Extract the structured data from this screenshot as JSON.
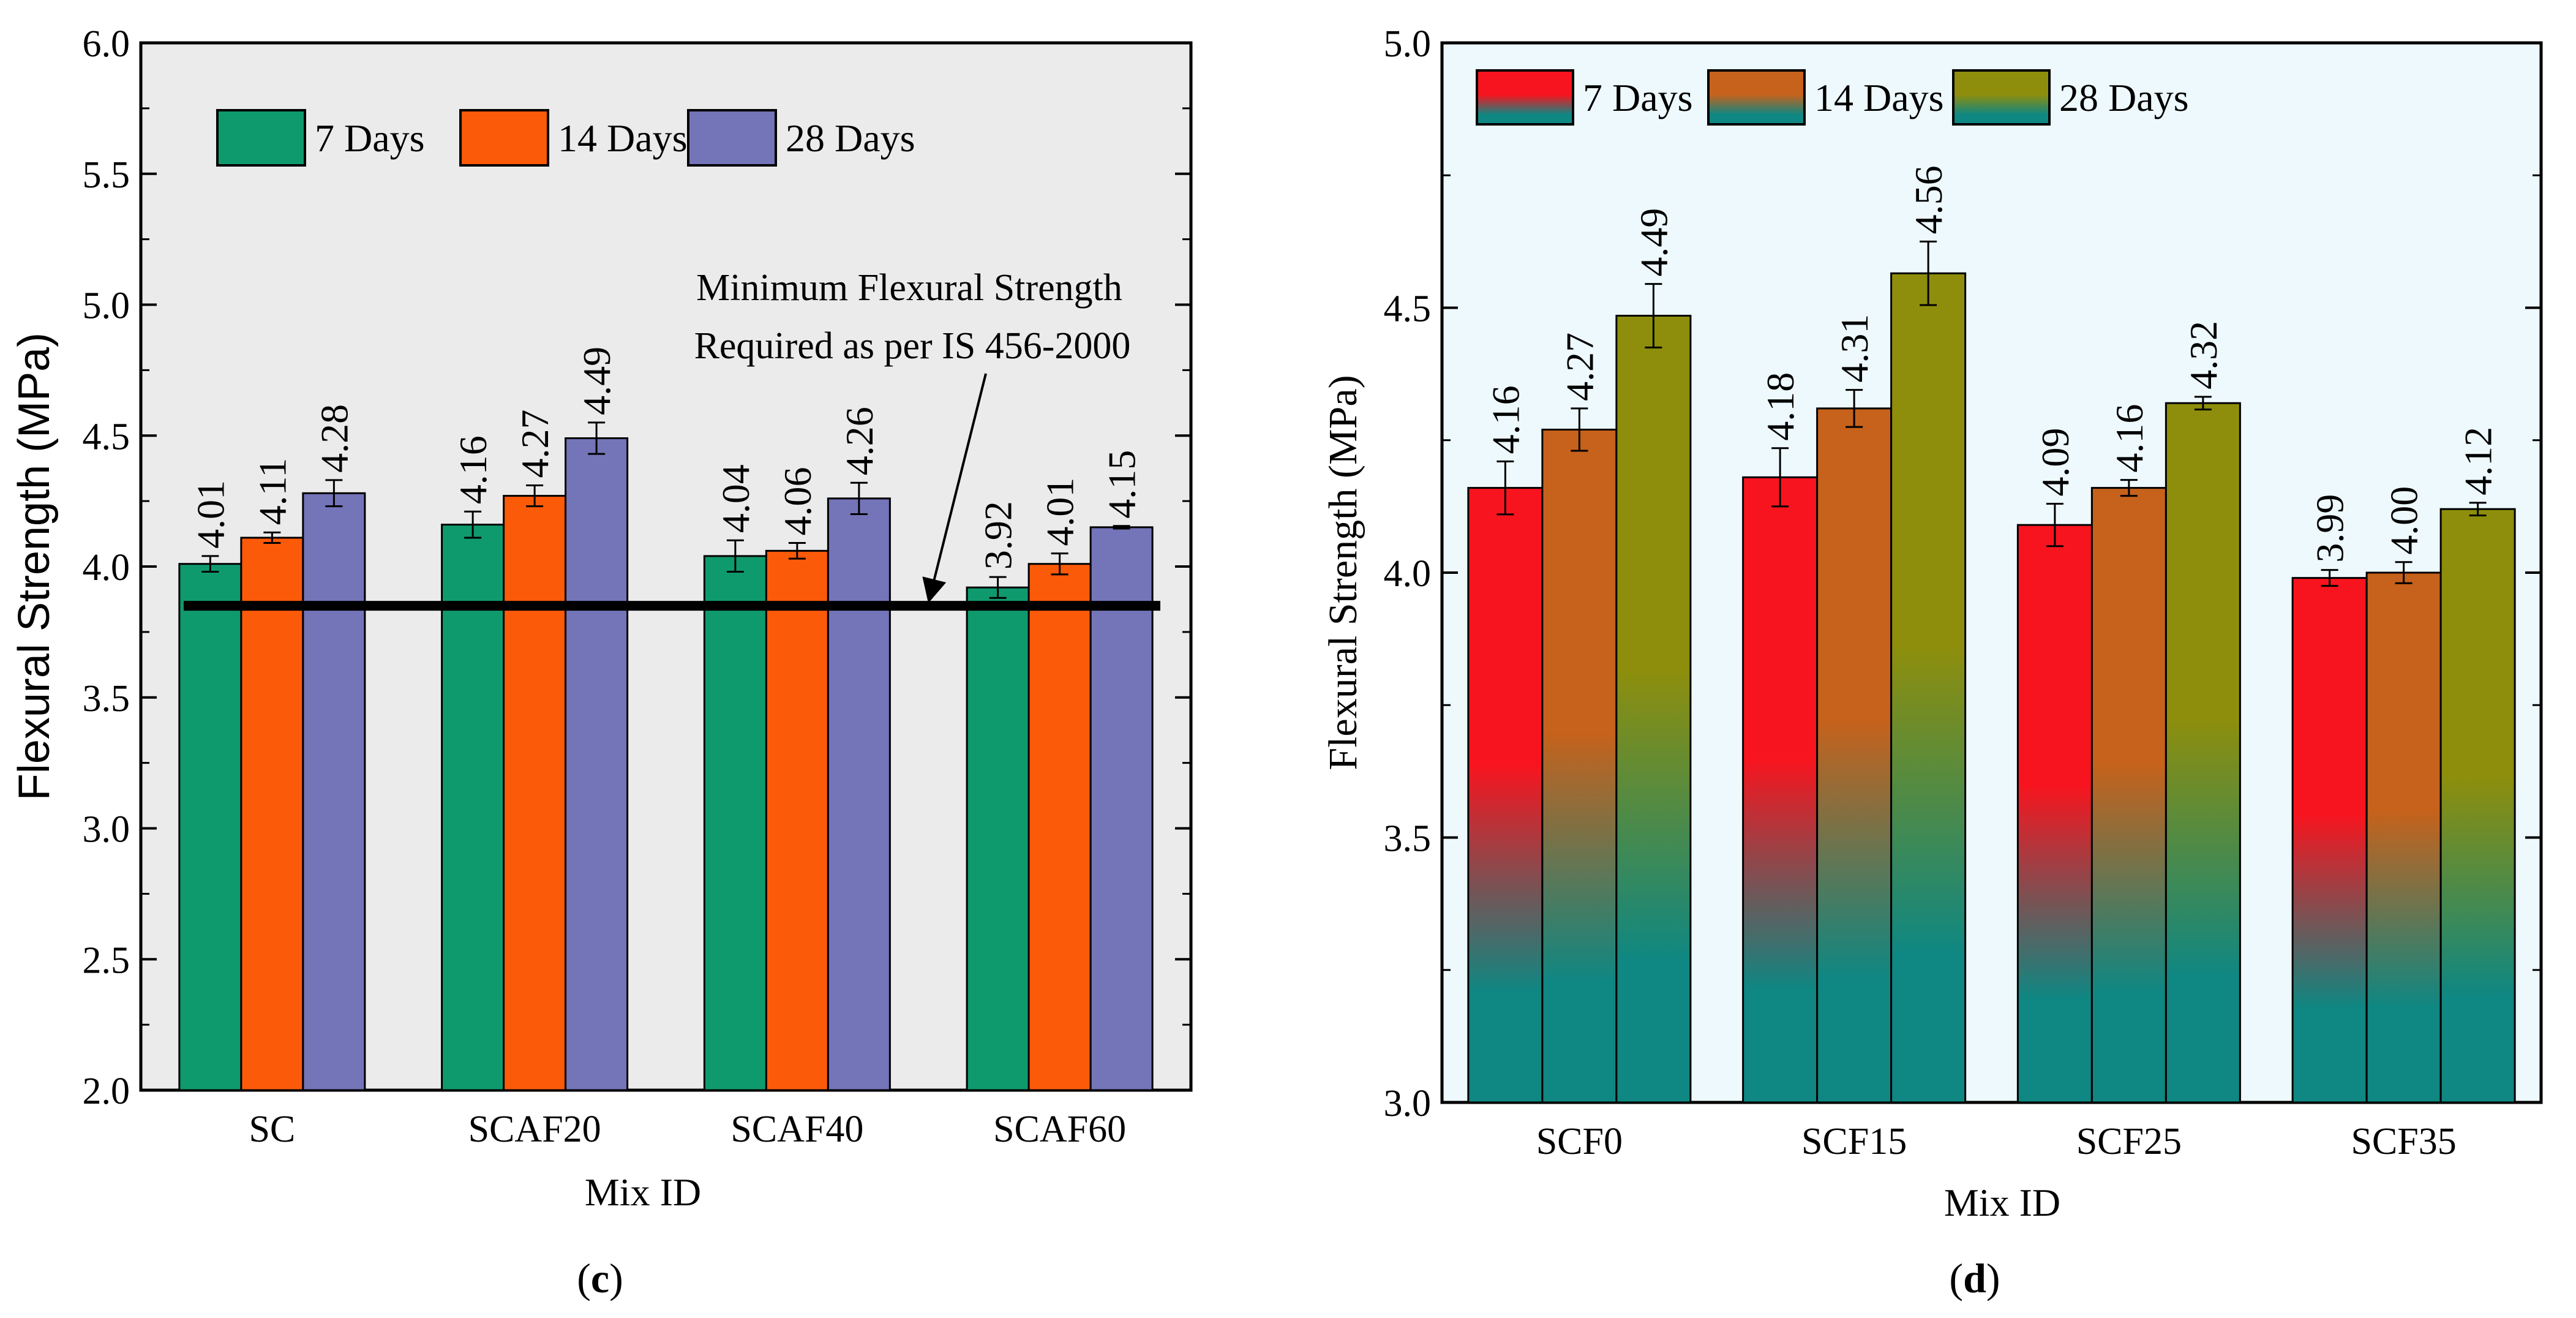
{
  "colors": {
    "panel_c_bg": "#ebebeb",
    "panel_d_bg": "#eef9fd",
    "c_7": "#0f9a6e",
    "c_14": "#fb5a08",
    "c_28": "#7474b8",
    "d_top_7": "#f8141e",
    "d_top_14": "#c6621c",
    "d_top_28": "#8e8e0c",
    "d_bottom": "#0f8782"
  },
  "chart_data": [
    {
      "panel": "(c)",
      "type": "bar",
      "title": "",
      "xlabel": "Mix ID",
      "ylabel": "Flexural Strength (MPa)",
      "ylim": [
        2.0,
        6.0
      ],
      "yticks": [
        "2.0",
        "2.5",
        "3.0",
        "3.5",
        "4.0",
        "4.5",
        "5.0",
        "5.5",
        "6.0"
      ],
      "categories": [
        "SC",
        "SCAF20",
        "SCAF40",
        "SCAF60"
      ],
      "legend_position": "top-left",
      "series": [
        {
          "name": "7 Days",
          "values": [
            4.01,
            4.16,
            4.04,
            3.92
          ],
          "labels": [
            "4.01",
            "4.16",
            "4.04",
            "3.92"
          ],
          "errors": [
            0.03,
            0.05,
            0.06,
            0.04
          ]
        },
        {
          "name": "14 Days",
          "values": [
            4.11,
            4.27,
            4.06,
            4.01
          ],
          "labels": [
            "4.11",
            "4.27",
            "4.06",
            "4.01"
          ],
          "errors": [
            0.02,
            0.04,
            0.03,
            0.04
          ]
        },
        {
          "name": "28 Days",
          "values": [
            4.28,
            4.49,
            4.26,
            4.15
          ],
          "labels": [
            "4.28",
            "4.49",
            "4.26",
            "4.15"
          ],
          "errors": [
            0.05,
            0.06,
            0.06,
            0.005
          ]
        }
      ],
      "reference_line": {
        "value": 3.85,
        "label_line1": "Minimum Flexural Strength",
        "label_line2": "Required as per IS 456-2000"
      }
    },
    {
      "panel": "(d)",
      "type": "bar",
      "title": "",
      "xlabel": "Mix ID",
      "ylabel": "Flexural Strength (MPa)",
      "ylim": [
        3.0,
        5.0
      ],
      "yticks": [
        "3.0",
        "3.5",
        "4.0",
        "4.5",
        "5.0"
      ],
      "categories": [
        "SCF0",
        "SCF15",
        "SCF25",
        "SCF35"
      ],
      "legend_position": "top-left",
      "series": [
        {
          "name": "7 Days",
          "values": [
            4.16,
            4.18,
            4.09,
            3.99
          ],
          "labels": [
            "4.16",
            "4.18",
            "4.09",
            "3.99"
          ],
          "errors": [
            0.05,
            0.055,
            0.04,
            0.015
          ]
        },
        {
          "name": "14 Days",
          "values": [
            4.27,
            4.31,
            4.16,
            4.0
          ],
          "labels": [
            "4.27",
            "4.31",
            "4.16",
            "4.00"
          ],
          "errors": [
            0.04,
            0.035,
            0.015,
            0.02
          ]
        },
        {
          "name": "28 Days",
          "values": [
            4.485,
            4.565,
            4.32,
            4.12
          ],
          "labels": [
            "4.49",
            "4.56",
            "4.32",
            "4.12"
          ],
          "errors": [
            0.06,
            0.06,
            0.012,
            0.012
          ]
        }
      ]
    }
  ]
}
